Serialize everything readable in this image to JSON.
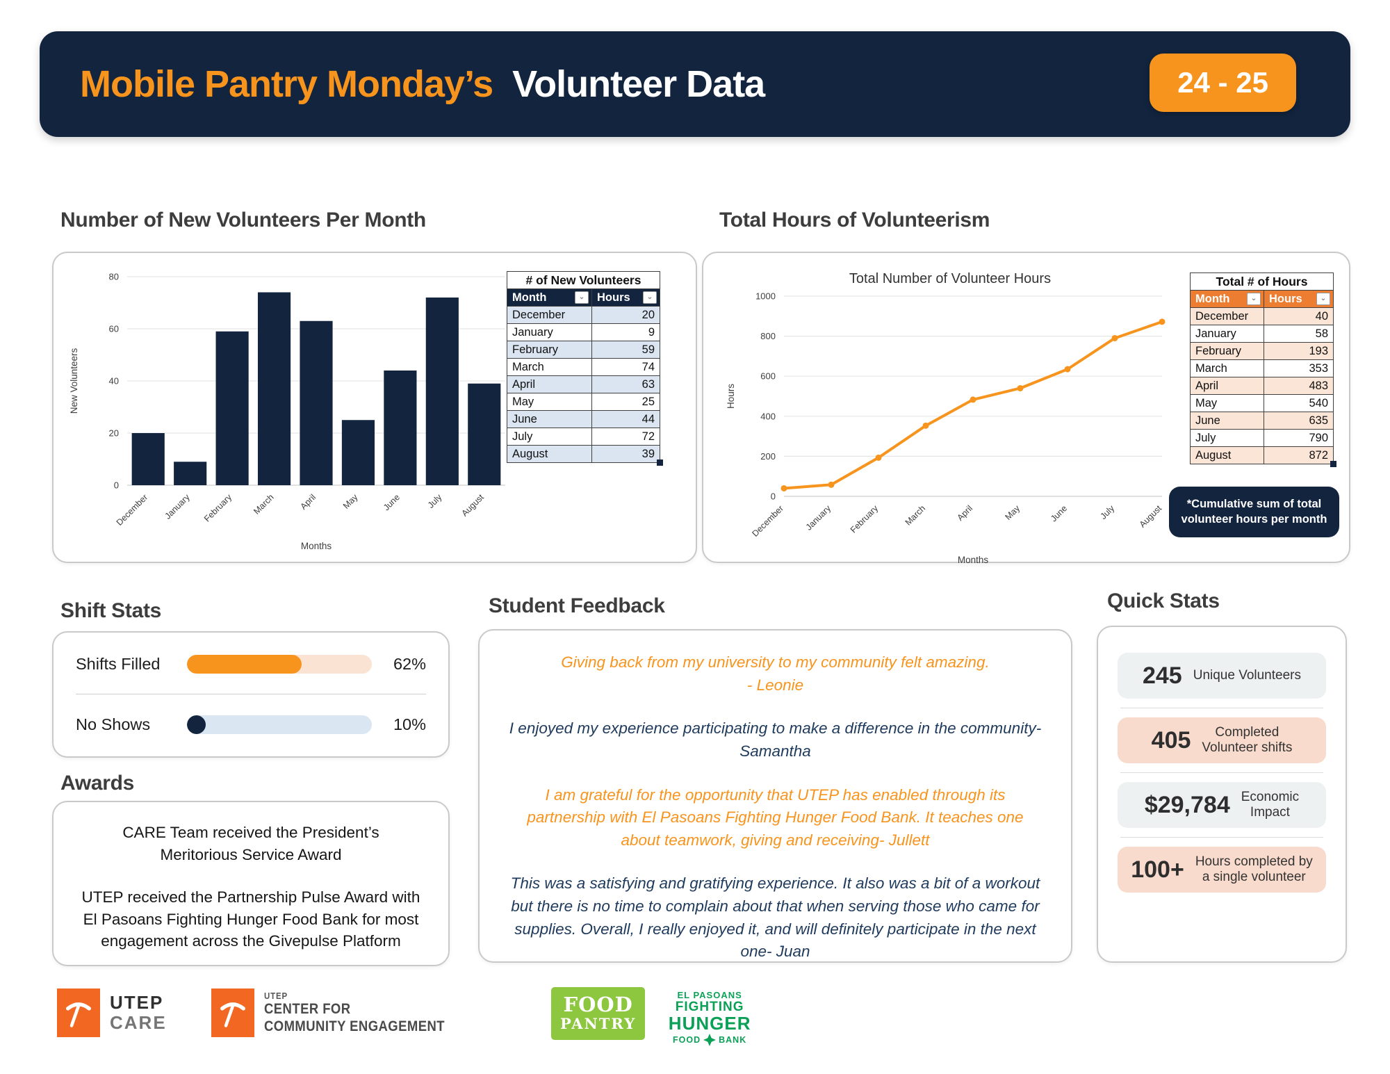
{
  "chart_data": [
    {
      "type": "bar",
      "title": "",
      "categories": [
        "December",
        "January",
        "February",
        "March",
        "April",
        "May",
        "June",
        "July",
        "August"
      ],
      "values": [
        20,
        9,
        59,
        74,
        63,
        25,
        44,
        72,
        39
      ],
      "xlabel": "Months",
      "ylabel": "New Volunteers",
      "ylim": [
        0,
        80
      ],
      "yticks": [
        0,
        20,
        40,
        60,
        80
      ],
      "grid": true,
      "legend": "none",
      "color": "#12243e"
    },
    {
      "type": "line",
      "title": "Total Number of Volunteer Hours",
      "categories": [
        "December",
        "January",
        "February",
        "March",
        "April",
        "May",
        "June",
        "July",
        "August"
      ],
      "values": [
        40,
        58,
        193,
        353,
        483,
        540,
        635,
        790,
        872
      ],
      "xlabel": "Months",
      "ylabel": "Hours",
      "ylim": [
        0,
        1000
      ],
      "yticks": [
        0,
        200,
        400,
        600,
        800,
        1000
      ],
      "grid": true,
      "legend": "none",
      "color": "#f7941d"
    }
  ],
  "header": {
    "title_highlight": "Mobile Pantry Monday’s",
    "title_rest": "Volunteer Data",
    "badge": "24 - 25"
  },
  "sections": {
    "new_volunteers_title": "Number of New Volunteers Per Month",
    "total_hours_title": "Total Hours of Volunteerism",
    "shift_stats_title": "Shift Stats",
    "awards_title": "Awards",
    "feedback_title": "Student Feedback",
    "quick_stats_title": "Quick Stats"
  },
  "tables": {
    "new_volunteers": {
      "title": "# of New Volunteers",
      "columns": [
        "Month",
        "Hours"
      ]
    },
    "total_hours": {
      "title": "Total # of Hours",
      "columns": [
        "Month",
        "Hours"
      ]
    }
  },
  "note": "*Cumulative sum of total volunteer hours per month",
  "shift_stats": {
    "rows": [
      {
        "label": "Shifts Filled",
        "display": "62%",
        "pct": 62,
        "style": "orange"
      },
      {
        "label": "No Shows",
        "display": "10%",
        "pct": 10,
        "style": "navy"
      }
    ]
  },
  "awards": {
    "paragraphs": [
      "CARE Team received  the President’s Meritorious Service Award",
      "UTEP received the Partnership Pulse Award with El Pasoans Fighting Hunger Food Bank for most engagement across the Givepulse Platform"
    ]
  },
  "feedback": {
    "quotes": [
      {
        "text": "Giving back from my university to my community felt amazing.",
        "author": "- Leonie",
        "color": "orange"
      },
      {
        "text": "I enjoyed my experience participating to make a difference in the community- Samantha",
        "author": "",
        "color": "navy"
      },
      {
        "text": "I am grateful for the opportunity that UTEP has enabled through its partnership with El Pasoans Fighting Hunger Food Bank. It teaches one about teamwork, giving and receiving- Jullett",
        "author": "",
        "color": "orange"
      },
      {
        "text": "This was a satisfying and gratifying experience. It also was a bit of a workout but there is no time to complain about that when serving those who came for supplies. Overall, I really enjoyed it, and will definitely participate in the next one- Juan",
        "author": "",
        "color": "navy"
      }
    ]
  },
  "quick_stats": {
    "items": [
      {
        "value": "245",
        "label": "Unique Volunteers",
        "bg": "gray"
      },
      {
        "value": "405",
        "label": "Completed\nVolunteer shifts",
        "bg": "peach"
      },
      {
        "value": "$29,784",
        "label": "Economic\nImpact",
        "bg": "gray"
      },
      {
        "value": "100+",
        "label": "Hours completed by\na single volunteer",
        "bg": "peach"
      }
    ]
  },
  "footer": {
    "logos": [
      {
        "name": "utep-care",
        "lines": [
          "UTEP",
          "CARE"
        ]
      },
      {
        "name": "utep-center-for-community-engagement",
        "small": "UTEP",
        "lines": [
          "CENTER FOR",
          "COMMUNITY ENGAGEMENT"
        ]
      },
      {
        "name": "food-pantry",
        "lines": [
          "FOOD",
          "PANTRY"
        ]
      },
      {
        "name": "el-pasoans-fighting-hunger-food-bank",
        "lines": [
          "EL PASOANS",
          "FIGHTING",
          "HUNGER"
        ],
        "food": "FOOD",
        "bank": "BANK"
      }
    ]
  },
  "colors": {
    "navy": "#12243e",
    "orange": "#f7941d",
    "table_blue_row": "#dbe5f1",
    "table_orange_header": "#ed7d31",
    "table_peach_row": "#fbe5d6",
    "pantry_green": "#8dc63f",
    "epfh_green": "#0aa157"
  }
}
